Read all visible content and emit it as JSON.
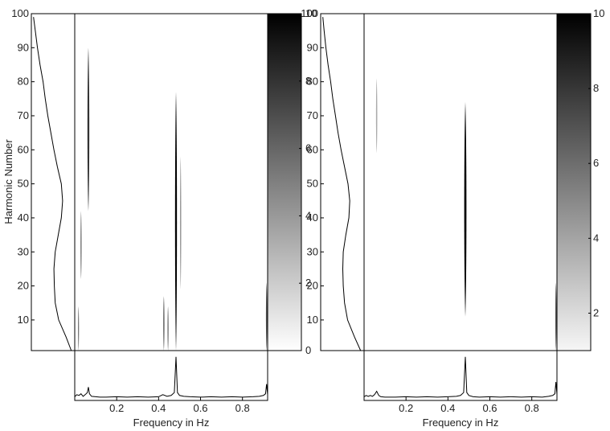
{
  "colors": {
    "ink": "#000000",
    "background": "#ffffff",
    "colormap_low": "#ffffff",
    "colormap_high": "#000000"
  },
  "chart_data": [
    {
      "type": "heatmap",
      "panel": "left",
      "title": "",
      "xlabel": "Frequency in Hz",
      "ylabel": "Harmonic Number",
      "xlim": [
        0,
        0.92
      ],
      "ylim": [
        1,
        100
      ],
      "x_ticks": [
        "0.2",
        "0.4",
        "0.6",
        "0.8"
      ],
      "y_ticks": [
        "10",
        "20",
        "30",
        "40",
        "50",
        "60",
        "70",
        "80",
        "90",
        "100"
      ],
      "colorbar": {
        "range": [
          0,
          10
        ],
        "ticks": [
          "0",
          "2",
          "4",
          "6",
          "8",
          "10"
        ]
      },
      "blobs": [
        {
          "f": 0.065,
          "h_low": 42,
          "h_high": 90,
          "intensity": 8,
          "width": 0.006
        },
        {
          "f": 0.03,
          "h_low": 22,
          "h_high": 42,
          "intensity": 5,
          "width": 0.004
        },
        {
          "f": 0.018,
          "h_low": 1,
          "h_high": 14,
          "intensity": 6,
          "width": 0.003
        },
        {
          "f": 0.483,
          "h_low": 1,
          "h_high": 77,
          "intensity": 10,
          "width": 0.006
        },
        {
          "f": 0.505,
          "h_low": 19,
          "h_high": 58,
          "intensity": 4,
          "width": 0.004
        },
        {
          "f": 0.425,
          "h_low": 1,
          "h_high": 17,
          "intensity": 6,
          "width": 0.004
        },
        {
          "f": 0.445,
          "h_low": 1,
          "h_high": 14,
          "intensity": 5,
          "width": 0.004
        },
        {
          "f": 0.915,
          "h_low": 1,
          "h_high": 21,
          "intensity": 7,
          "width": 0.004
        }
      ],
      "harmonic_profile": {
        "h": [
          1,
          5,
          10,
          15,
          20,
          25,
          30,
          35,
          40,
          45,
          50,
          55,
          60,
          65,
          70,
          75,
          80,
          85,
          90,
          95,
          99
        ],
        "value": [
          0.92,
          0.8,
          0.63,
          0.55,
          0.53,
          0.52,
          0.55,
          0.62,
          0.69,
          0.72,
          0.69,
          0.6,
          0.52,
          0.45,
          0.38,
          0.32,
          0.27,
          0.2,
          0.14,
          0.09,
          0.05
        ]
      },
      "spectrum": {
        "x": [
          0.0,
          0.01,
          0.02,
          0.03,
          0.04,
          0.05,
          0.06,
          0.065,
          0.07,
          0.08,
          0.1,
          0.12,
          0.15,
          0.2,
          0.25,
          0.3,
          0.35,
          0.4,
          0.42,
          0.44,
          0.46,
          0.475,
          0.483,
          0.49,
          0.5,
          0.52,
          0.55,
          0.6,
          0.65,
          0.7,
          0.75,
          0.8,
          0.85,
          0.88,
          0.9,
          0.91,
          0.915,
          0.92
        ],
        "y": [
          0.05,
          0.1,
          0.08,
          0.12,
          0.06,
          0.1,
          0.15,
          0.28,
          0.12,
          0.06,
          0.05,
          0.04,
          0.04,
          0.05,
          0.04,
          0.05,
          0.04,
          0.05,
          0.1,
          0.06,
          0.08,
          0.15,
          1.0,
          0.15,
          0.08,
          0.06,
          0.05,
          0.04,
          0.05,
          0.04,
          0.05,
          0.04,
          0.05,
          0.06,
          0.08,
          0.12,
          0.35,
          0.1
        ]
      }
    },
    {
      "type": "heatmap",
      "panel": "right",
      "title": "",
      "xlabel": "Frequency in Hz",
      "ylabel": "",
      "xlim": [
        0,
        0.92
      ],
      "ylim": [
        1,
        100
      ],
      "x_ticks": [
        "0.2",
        "0.4",
        "0.6",
        "0.8"
      ],
      "y_ticks": [
        "10",
        "20",
        "30",
        "40",
        "50",
        "60",
        "70",
        "80",
        "90",
        "100"
      ],
      "colorbar": {
        "range": [
          1,
          10
        ],
        "ticks": [
          "2",
          "4",
          "6",
          "8",
          "10"
        ]
      },
      "blobs": [
        {
          "f": 0.06,
          "h_low": 59,
          "h_high": 81,
          "intensity": 4,
          "width": 0.004
        },
        {
          "f": 0.483,
          "h_low": 11,
          "h_high": 74,
          "intensity": 10,
          "width": 0.007
        },
        {
          "f": 0.915,
          "h_low": 1,
          "h_high": 21,
          "intensity": 7,
          "width": 0.004
        }
      ],
      "harmonic_profile": {
        "h": [
          1,
          5,
          10,
          15,
          20,
          25,
          30,
          35,
          40,
          45,
          50,
          55,
          60,
          65,
          70,
          75,
          80,
          85,
          90,
          95,
          99
        ],
        "value": [
          0.92,
          0.78,
          0.62,
          0.55,
          0.52,
          0.51,
          0.52,
          0.58,
          0.65,
          0.67,
          0.63,
          0.55,
          0.47,
          0.4,
          0.34,
          0.28,
          0.23,
          0.17,
          0.12,
          0.08,
          0.05
        ]
      },
      "spectrum": {
        "x": [
          0.0,
          0.01,
          0.02,
          0.03,
          0.04,
          0.05,
          0.06,
          0.07,
          0.08,
          0.1,
          0.15,
          0.2,
          0.25,
          0.3,
          0.35,
          0.4,
          0.44,
          0.46,
          0.475,
          0.483,
          0.49,
          0.5,
          0.52,
          0.55,
          0.6,
          0.65,
          0.7,
          0.75,
          0.8,
          0.85,
          0.88,
          0.9,
          0.91,
          0.915,
          0.92
        ],
        "y": [
          0.05,
          0.08,
          0.06,
          0.08,
          0.06,
          0.1,
          0.18,
          0.08,
          0.05,
          0.04,
          0.04,
          0.05,
          0.04,
          0.05,
          0.04,
          0.05,
          0.06,
          0.08,
          0.15,
          1.0,
          0.15,
          0.08,
          0.05,
          0.04,
          0.05,
          0.04,
          0.05,
          0.04,
          0.05,
          0.04,
          0.06,
          0.08,
          0.12,
          0.4,
          0.1
        ]
      }
    }
  ]
}
